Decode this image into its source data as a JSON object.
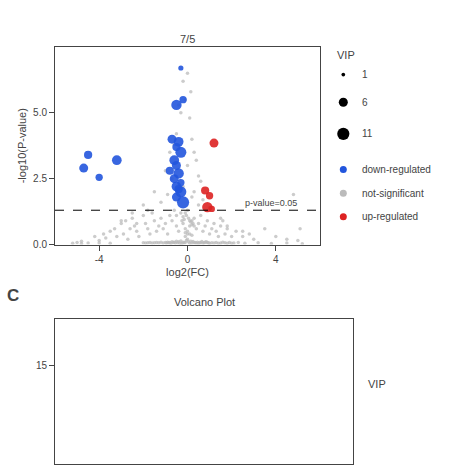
{
  "chart_data": [
    {
      "type": "scatter",
      "title": "7/5",
      "xlabel": "log2(FC)",
      "ylabel": "-log10(P-value)",
      "xlim": [
        -6.0,
        6.0
      ],
      "ylim": [
        0.0,
        7.5
      ],
      "xticks": [
        -4,
        0,
        4
      ],
      "yticks": [
        {
          "value": 0.0,
          "label": "0.0"
        },
        {
          "value": 2.5,
          "label": "2.5"
        },
        {
          "value": 5.0,
          "label": "5.0"
        }
      ],
      "grid": false,
      "reference_line": {
        "y": 1.301,
        "label": "p-value=0.05",
        "line_style": "dashed"
      },
      "size_legend": {
        "title": "VIP",
        "values": [
          1,
          6,
          11
        ]
      },
      "series": [
        {
          "name": "down-regulated",
          "color": "#2255dd",
          "x": [
            -0.3,
            -0.5,
            -0.2,
            -0.7,
            -0.4,
            -0.5,
            -0.3,
            -0.6,
            -0.5,
            -0.8,
            -0.4,
            -0.6,
            -0.3,
            -0.5,
            -0.4,
            -0.3,
            -0.5,
            -0.2,
            -3.2,
            -4.5,
            -4.7,
            -4.0
          ],
          "values": [
            6.7,
            5.3,
            5.5,
            4.0,
            3.9,
            3.7,
            3.5,
            3.2,
            3.0,
            2.8,
            2.7,
            2.5,
            2.35,
            2.2,
            2.1,
            2.0,
            1.8,
            1.6,
            3.2,
            3.4,
            2.9,
            2.55
          ],
          "vip": [
            2,
            8,
            4,
            6,
            7,
            5,
            9,
            7,
            6,
            5,
            8,
            6,
            4,
            7,
            5,
            9,
            6,
            11,
            7,
            5,
            6,
            4
          ]
        },
        {
          "name": "not-significant",
          "color": "#bbbbbb",
          "x": [
            -5.2,
            -5.0,
            -4.8,
            -4.5,
            -4.2,
            -4.0,
            -3.8,
            -3.7,
            -3.5,
            -3.3,
            -3.2,
            -3.0,
            -2.9,
            -2.8,
            -2.7,
            -2.6,
            -2.5,
            -2.4,
            -2.3,
            -2.2,
            -2.0,
            -1.9,
            -1.8,
            -1.7,
            -1.6,
            -1.5,
            -1.4,
            -1.3,
            -1.2,
            -1.1,
            -1.0,
            -0.9,
            -0.8,
            -0.7,
            -0.6,
            -0.5,
            -0.4,
            -0.3,
            -0.2,
            -0.1,
            0.0,
            0.1,
            0.2,
            0.3,
            0.4,
            0.5,
            0.6,
            0.7,
            0.8,
            0.9,
            1.0,
            1.1,
            1.2,
            1.3,
            1.4,
            1.5,
            1.6,
            1.7,
            1.8,
            2.0,
            2.2,
            2.5,
            2.8,
            3.0,
            3.5,
            4.0,
            4.5,
            5.0,
            -0.8,
            -0.5,
            -0.3,
            -0.1,
            0.1,
            0.2,
            0.3,
            0.4,
            -1.0,
            -0.6,
            0.0,
            0.5,
            -0.4,
            -0.2,
            0.0,
            0.15,
            -0.7,
            -0.2,
            0.3,
            0.6,
            -1.5,
            -0.9,
            0.2,
            0.7,
            -2.0,
            -1.2,
            0.5,
            1.0,
            -2.5,
            -1.8,
            -0.5,
            1.5,
            -3.0,
            -2.3,
            1.8,
            2.5,
            -0.1,
            0.0,
            0.05,
            -0.05,
            0.1,
            -0.1,
            0.15,
            -0.15,
            0.2,
            -0.2,
            0.25,
            -0.25,
            0.3,
            -0.3,
            0.35,
            -0.35,
            0.4,
            -0.4,
            0.45,
            -0.45,
            0.5,
            -0.5,
            0.55,
            -0.55,
            0.6,
            -0.6,
            0.65,
            -0.65,
            0.7,
            -0.7,
            0.75,
            -0.75,
            0.8,
            -0.8,
            0.85,
            -0.85,
            0.9,
            -0.9,
            0.95,
            -0.95,
            1.0,
            -1.0,
            1.1,
            -1.1,
            1.2,
            -1.2,
            1.3,
            -1.3,
            1.4,
            -1.4,
            1.5,
            -1.5,
            1.6,
            -1.6,
            1.7,
            -1.7,
            1.8,
            -1.8,
            1.9,
            -1.9,
            2.0,
            -2.0,
            2.1,
            2.3,
            2.6,
            3.2,
            3.8,
            4.5,
            5.2,
            -3.5,
            -4.0,
            -4.8,
            0.0,
            0.05,
            -0.05,
            0.1,
            -0.1,
            0.15,
            -0.15,
            0.2,
            -0.2,
            0.25,
            -0.25,
            0.3,
            0.0,
            0.1,
            -0.1,
            0.2,
            4.8,
            5.1
          ],
          "values": [
            0.05,
            0.08,
            0.12,
            0.06,
            0.3,
            0.15,
            0.4,
            0.25,
            0.5,
            0.6,
            0.3,
            0.8,
            0.4,
            0.9,
            0.2,
            0.6,
            1.0,
            0.7,
            0.5,
            0.3,
            1.1,
            0.8,
            0.6,
            0.4,
            1.2,
            0.9,
            0.5,
            0.7,
            1.0,
            0.6,
            0.8,
            0.4,
            1.1,
            0.9,
            1.3,
            0.7,
            0.5,
            1.2,
            0.8,
            0.6,
            0.4,
            0.7,
            0.9,
            1.0,
            0.6,
            0.8,
            1.1,
            0.5,
            0.7,
            0.9,
            0.4,
            0.6,
            0.8,
            0.5,
            0.3,
            0.7,
            0.9,
            0.4,
            0.6,
            0.3,
            0.5,
            0.3,
            0.4,
            0.2,
            0.6,
            0.3,
            0.2,
            0.15,
            3.5,
            4.2,
            5.0,
            5.5,
            4.8,
            4.0,
            3.5,
            3.2,
            2.8,
            3.8,
            3.0,
            2.6,
            5.3,
            6.2,
            6.5,
            5.8,
            2.5,
            2.2,
            2.0,
            2.4,
            2.0,
            1.9,
            1.8,
            1.7,
            1.5,
            1.6,
            1.5,
            1.4,
            1.2,
            1.3,
            1.1,
            1.0,
            0.9,
            0.8,
            0.7,
            0.5,
            0.3,
            0.2,
            0.1,
            0.15,
            0.05,
            0.08,
            0.12,
            0.07,
            0.06,
            0.09,
            0.11,
            0.04,
            0.07,
            0.13,
            0.08,
            0.05,
            0.06,
            0.1,
            0.09,
            0.07,
            0.05,
            0.12,
            0.08,
            0.06,
            0.07,
            0.09,
            0.11,
            0.08,
            0.06,
            0.1,
            0.07,
            0.05,
            0.09,
            0.08,
            0.1,
            0.07,
            0.08,
            0.09,
            0.07,
            0.06,
            0.05,
            0.08,
            0.07,
            0.06,
            0.06,
            0.09,
            0.08,
            0.07,
            0.05,
            0.08,
            0.06,
            0.07,
            0.09,
            0.06,
            0.07,
            0.08,
            0.05,
            0.07,
            0.08,
            0.06,
            0.05,
            0.07,
            0.06,
            0.08,
            0.05,
            0.07,
            0.04,
            0.06,
            0.03,
            0.05,
            0.06,
            0.04,
            1.3,
            1.0,
            1.1,
            0.9,
            1.2,
            0.85,
            0.95,
            0.75,
            1.05,
            0.8,
            0.9,
            0.7,
            0.5,
            0.4,
            0.45,
            0.35,
            1.9,
            0.6
          ]
        },
        {
          "name": "up-regulated",
          "color": "#dd2222",
          "x": [
            1.2,
            0.8,
            1.0,
            0.9,
            1.1
          ],
          "values": [
            3.85,
            2.05,
            1.85,
            1.42,
            1.35
          ],
          "vip": [
            6,
            5,
            4,
            8,
            3
          ]
        }
      ]
    },
    {
      "type": "scatter",
      "title": "Volcano Plot",
      "annotations": [
        "C",
        "VIP"
      ],
      "xlim": [
        -6.0,
        6.0
      ],
      "ylim": [
        0,
        22
      ],
      "yticks": [
        15
      ],
      "tick_labels": "y",
      "grid": false
    }
  ]
}
